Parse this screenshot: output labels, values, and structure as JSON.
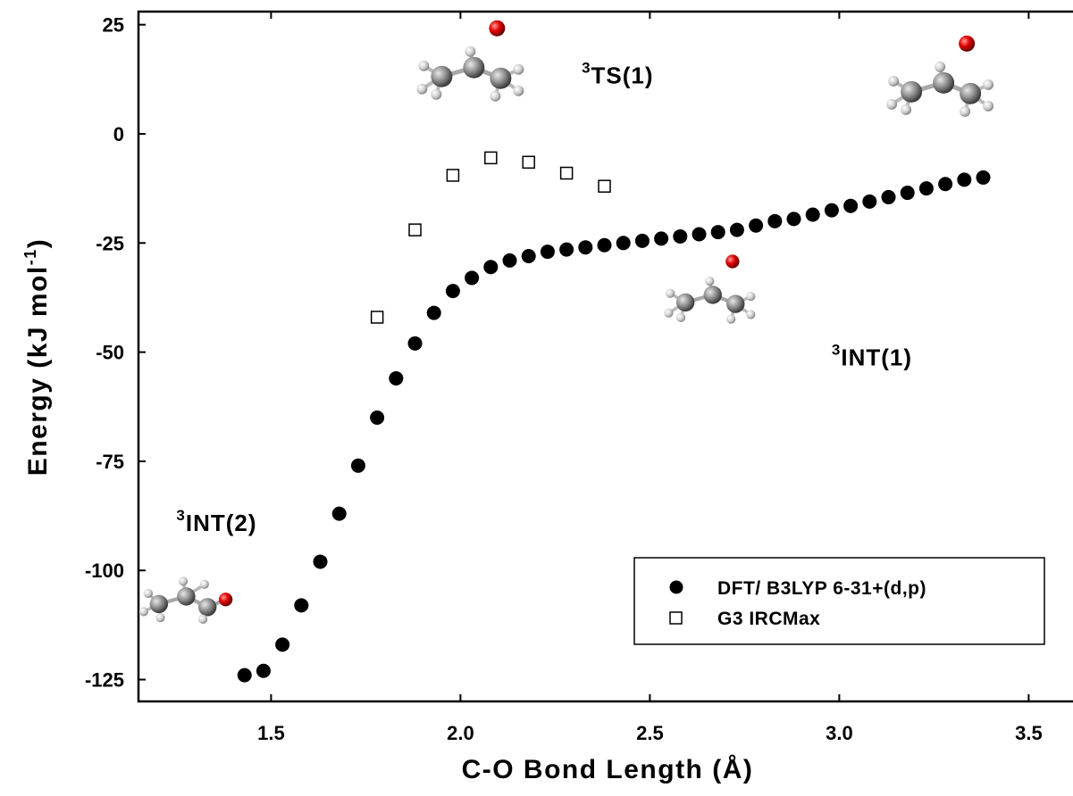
{
  "chart_data": {
    "type": "scatter",
    "xlabel": "C-O Bond Length (Å)",
    "ylabel": "Energy (kJ mol",
    "ylabel_sup": "-1",
    "ylabel_end": ")",
    "xlim": [
      1.15,
      3.65
    ],
    "ylim": [
      -130,
      28
    ],
    "x_ticks": [
      1.5,
      2.0,
      2.5,
      3.0,
      3.5
    ],
    "x_tick_labels": [
      "1.5",
      "2.0",
      "2.5",
      "3.0",
      "3.5"
    ],
    "y_ticks": [
      25,
      0,
      -25,
      -50,
      -75,
      -100,
      -125
    ],
    "y_tick_labels": [
      "25",
      "0",
      "-25",
      "-50",
      "-75",
      "-100",
      "-125"
    ],
    "grid": false,
    "legend_position": "bottom-right",
    "series": [
      {
        "name": "DFT/ B3LYP 6-31+(d,p)",
        "marker": "filled-circle",
        "color": "#000000",
        "x": [
          1.43,
          1.48,
          1.53,
          1.58,
          1.63,
          1.68,
          1.73,
          1.78,
          1.83,
          1.88,
          1.93,
          1.98,
          2.03,
          2.08,
          2.13,
          2.18,
          2.23,
          2.28,
          2.33,
          2.38,
          2.43,
          2.48,
          2.53,
          2.58,
          2.63,
          2.68,
          2.73,
          2.78,
          2.83,
          2.88,
          2.93,
          2.98,
          3.03,
          3.08,
          3.13,
          3.18,
          3.23,
          3.28,
          3.33,
          3.38
        ],
        "y": [
          -124,
          -123,
          -117,
          -108,
          -98,
          -87,
          -76,
          -65,
          -56,
          -48,
          -41,
          -36,
          -33,
          -30.5,
          -29,
          -28,
          -27,
          -26.5,
          -26,
          -25.5,
          -25,
          -24.5,
          -24,
          -23.5,
          -23,
          -22.5,
          -22,
          -21,
          -20,
          -19.5,
          -18.5,
          -17.5,
          -16.5,
          -15.5,
          -14.5,
          -13.5,
          -12.5,
          -11.5,
          -10.5,
          -10
        ]
      },
      {
        "name": "G3 IRCMax",
        "marker": "open-square",
        "color": "#000000",
        "x": [
          1.78,
          1.88,
          1.98,
          2.08,
          2.18,
          2.28,
          2.38
        ],
        "y": [
          -42,
          -22,
          -9.5,
          -5.5,
          -6.5,
          -9,
          -12
        ]
      }
    ],
    "annotations": [
      {
        "sup": "3",
        "text": "TS(1)",
        "x": 2.32,
        "y": 11.5
      },
      {
        "sup": "3",
        "text": "INT(1)",
        "x": 2.98,
        "y": -53
      },
      {
        "sup": "3",
        "text": "INT(2)",
        "x": 1.25,
        "y": -91
      }
    ],
    "molecules": [
      {
        "name": "ts1-molecule",
        "x": 2.04,
        "y": 11.5,
        "scale": 1.0
      },
      {
        "name": "int1-top-molecule",
        "x": 3.28,
        "y": 8,
        "scale": 1.0
      },
      {
        "name": "int1-mid-molecule",
        "x": 2.67,
        "y": -40,
        "scale": 0.85
      },
      {
        "name": "int2-molecule",
        "x": 1.28,
        "y": -107,
        "scale": 0.85
      }
    ]
  }
}
